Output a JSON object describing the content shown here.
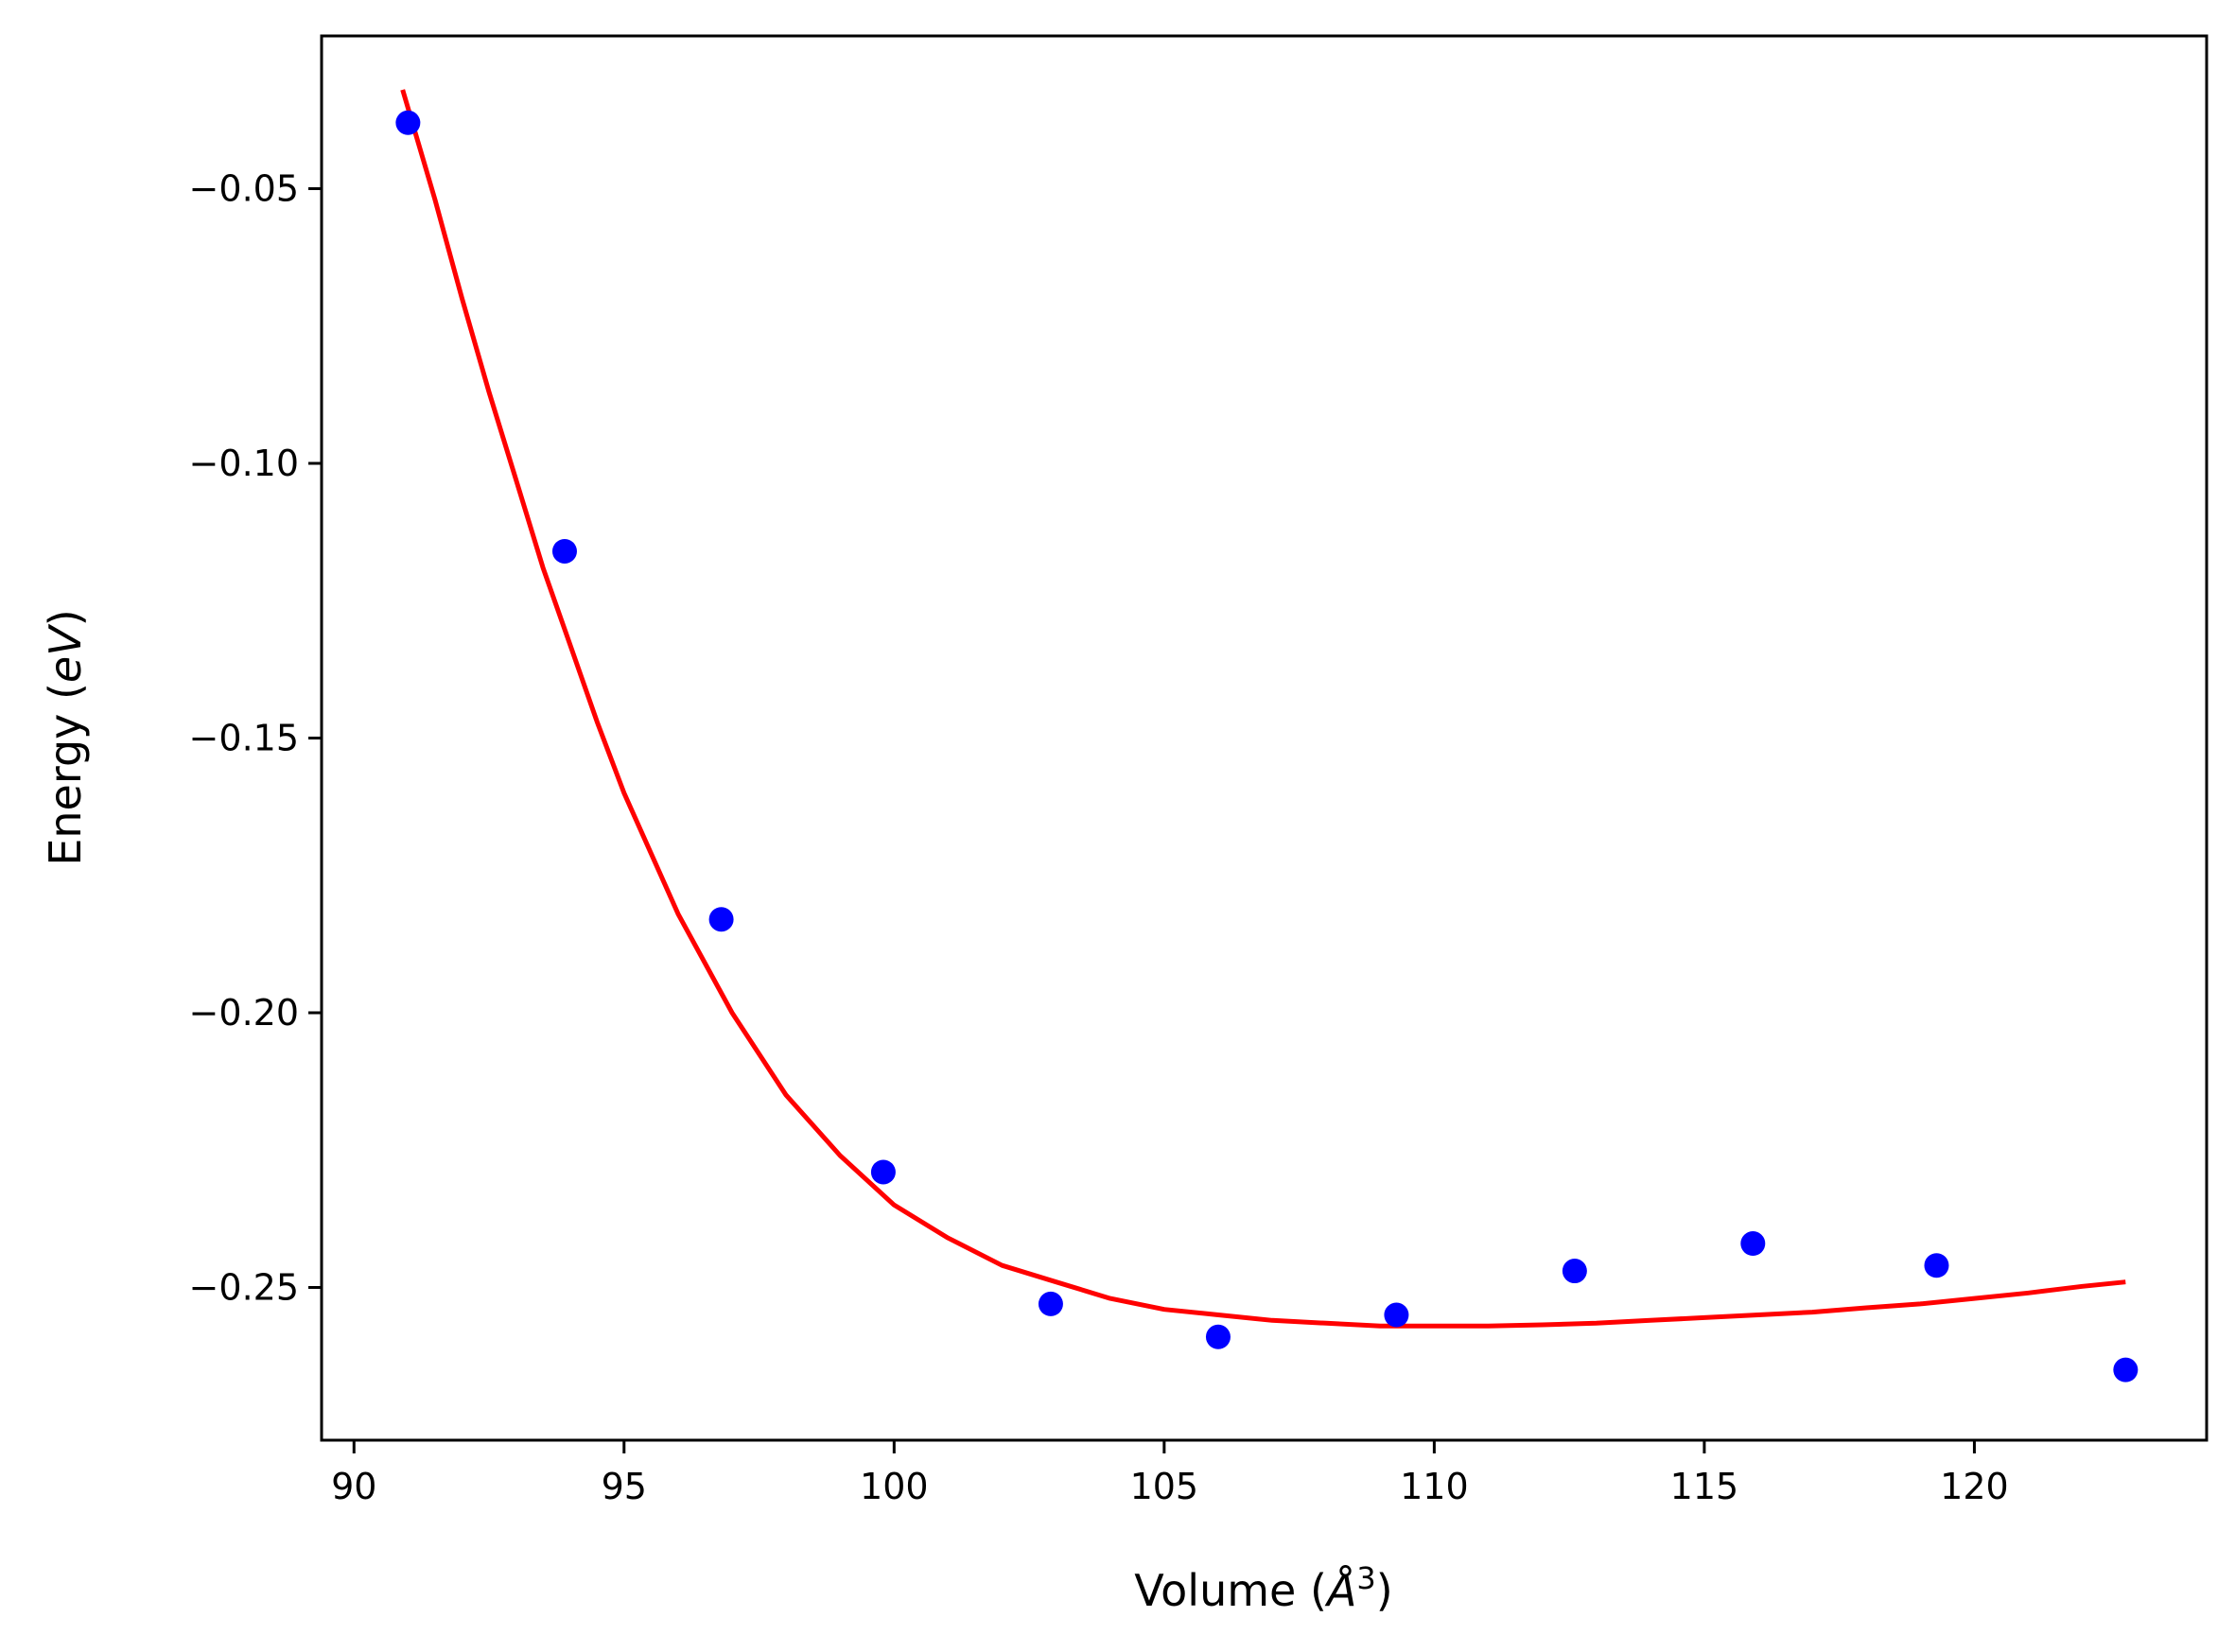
{
  "chart_data": {
    "type": "scatter",
    "xlabel": "Volume",
    "xunit": "Å",
    "xunit_sup": "3",
    "ylabel": "Energy",
    "yunit": "eV",
    "xlim": [
      89.4,
      124.3
    ],
    "ylim": [
      -0.2778,
      -0.0222
    ],
    "xticks": [
      90,
      95,
      100,
      105,
      110,
      115,
      120
    ],
    "yticks": [
      -0.05,
      -0.1,
      -0.15,
      -0.2,
      -0.25
    ],
    "xtick_labels": [
      "90",
      "95",
      "100",
      "105",
      "110",
      "115",
      "120"
    ],
    "ytick_labels": [
      "−0.05",
      "−0.10",
      "−0.15",
      "−0.20",
      "−0.25"
    ],
    "grid": false,
    "legend": "none",
    "series": [
      {
        "kind": "points",
        "color": "#0000ff",
        "x": [
          91.0,
          93.9,
          96.8,
          99.8,
          102.9,
          106.0,
          109.3,
          112.6,
          115.9,
          119.3,
          122.8
        ],
        "y": [
          -0.038,
          -0.116,
          -0.183,
          -0.229,
          -0.253,
          -0.259,
          -0.255,
          -0.247,
          -0.242,
          -0.246,
          -0.265
        ]
      },
      {
        "kind": "fit-line",
        "color": "#ff0000",
        "x": [
          90.9,
          91.5,
          92.0,
          92.5,
          93.0,
          93.5,
          94.0,
          94.5,
          95.0,
          96.0,
          97.0,
          98.0,
          99.0,
          100.0,
          101.0,
          102.0,
          103.0,
          104.0,
          105.0,
          106.0,
          107.0,
          108.0,
          109.0,
          110.0,
          111.0,
          112.0,
          113.0,
          114.0,
          115.0,
          116.0,
          117.0,
          118.0,
          119.0,
          120.0,
          121.0,
          122.0,
          122.8
        ],
        "y": [
          -0.032,
          -0.052,
          -0.07,
          -0.087,
          -0.103,
          -0.119,
          -0.133,
          -0.147,
          -0.16,
          -0.182,
          -0.2,
          -0.215,
          -0.226,
          -0.235,
          -0.241,
          -0.246,
          -0.249,
          -0.252,
          -0.254,
          -0.255,
          -0.256,
          -0.2565,
          -0.257,
          -0.257,
          -0.257,
          -0.2568,
          -0.2565,
          -0.256,
          -0.2555,
          -0.255,
          -0.2545,
          -0.2537,
          -0.253,
          -0.252,
          -0.251,
          -0.2498,
          -0.249
        ]
      }
    ]
  }
}
